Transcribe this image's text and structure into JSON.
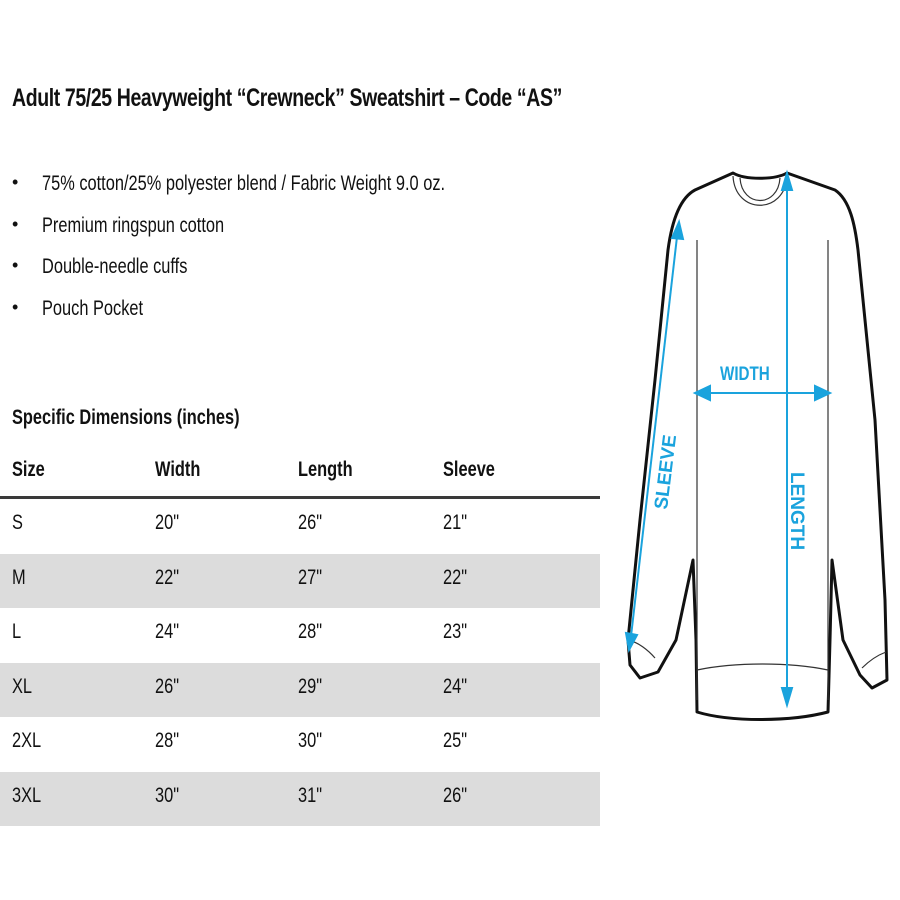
{
  "title": "Adult 75/25 Heavyweight “Crewneck” Sweatshirt – Code “AS”",
  "features": [
    "75% cotton/25% polyester blend / Fabric Weight 9.0 oz.",
    "Premium ringspun cotton",
    "Double-needle cuffs",
    "Pouch Pocket"
  ],
  "dimensions_title": "Specific Dimensions (inches)",
  "table": {
    "headers": [
      "Size",
      "Width",
      "Length",
      "Sleeve"
    ],
    "rows": [
      [
        "S",
        "20\"",
        "26\"",
        "21\""
      ],
      [
        "M",
        "22\"",
        "27\"",
        "22\""
      ],
      [
        "L",
        "24\"",
        "28\"",
        "23\""
      ],
      [
        "XL",
        "26\"",
        "29\"",
        "24\""
      ],
      [
        "2XL",
        "28\"",
        "30\"",
        "25\""
      ],
      [
        "3XL",
        "30\"",
        "31\"",
        "26\""
      ]
    ],
    "stripe_color": "#dcdcdc"
  },
  "diagram": {
    "labels": {
      "width": "WIDTH",
      "length": "LENGTH",
      "sleeve": "SLEEVE"
    },
    "accent_color": "#1aa3dd"
  }
}
